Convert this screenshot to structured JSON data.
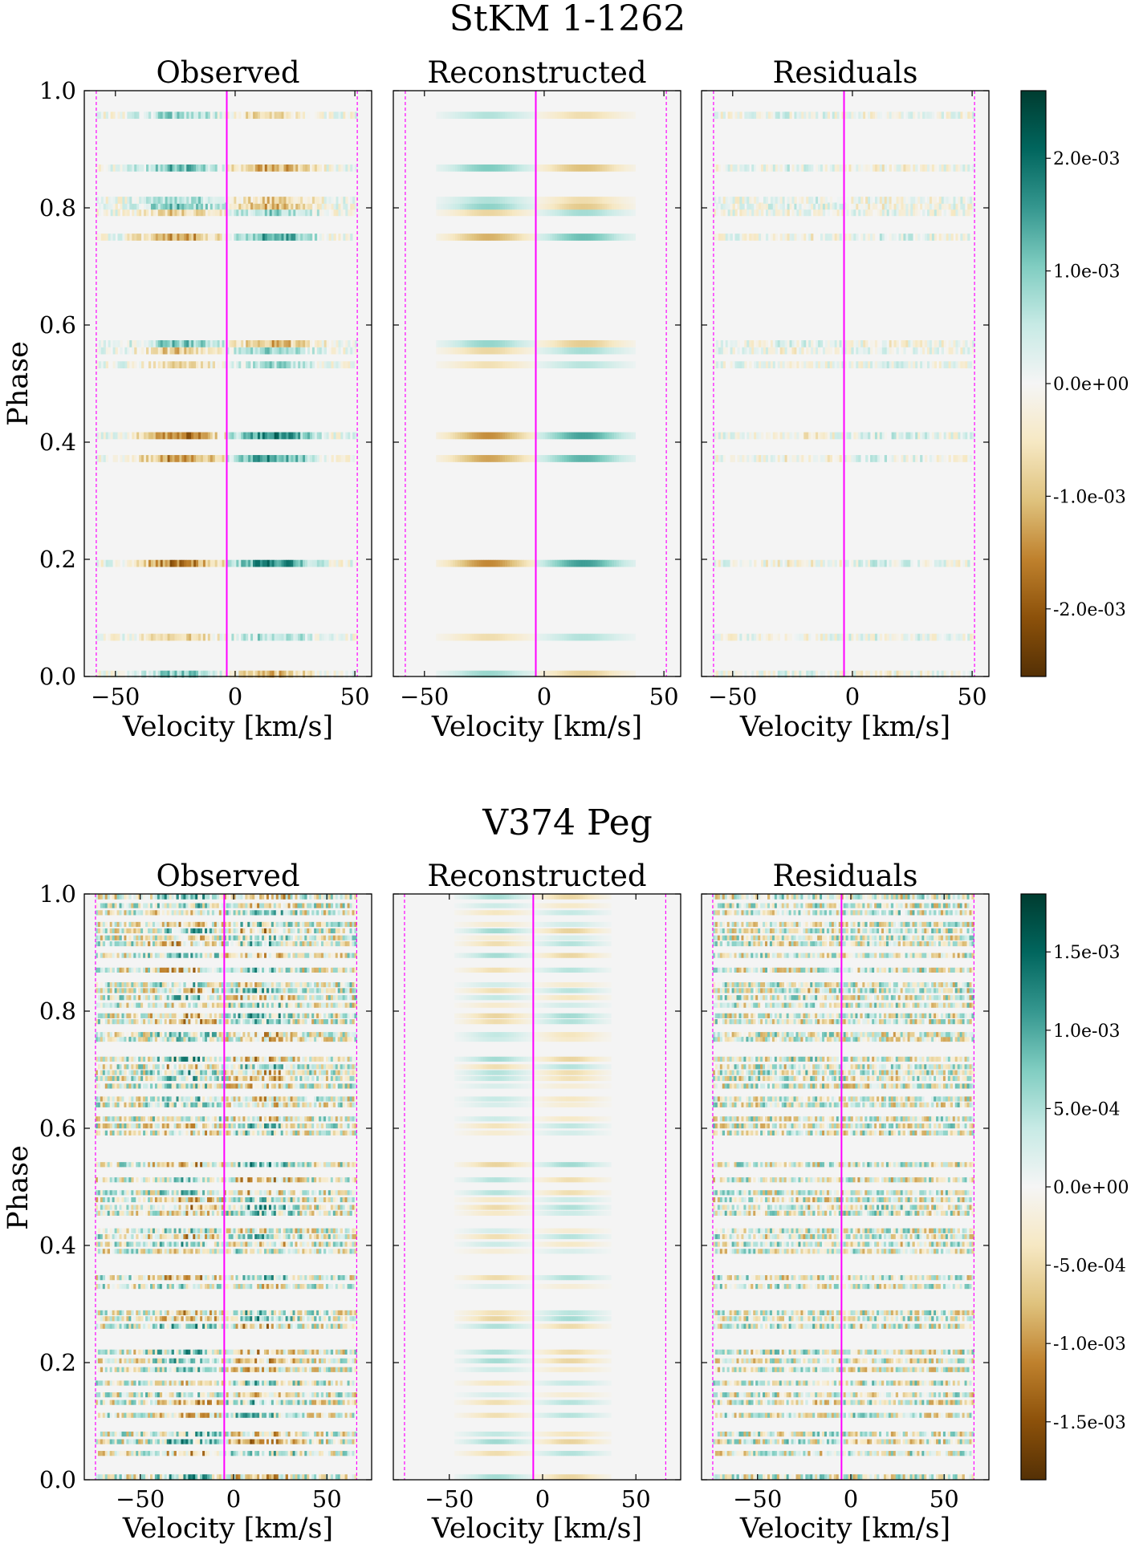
{
  "figure": {
    "colormap": [
      "#543005",
      "#8c510a",
      "#bf812d",
      "#dfc27d",
      "#f6e8c3",
      "#f5f5f5",
      "#c7eae5",
      "#80cdc1",
      "#35978f",
      "#01665e",
      "#003c30"
    ],
    "line_color": "#ff00ff",
    "background_color": "#f4f4f4"
  },
  "chart_data": [
    {
      "type": "heatmap",
      "title": "StKM 1-1262",
      "panels": [
        {
          "title": "Observed",
          "mode": "observed"
        },
        {
          "title": "Reconstructed",
          "mode": "reconstructed"
        },
        {
          "title": "Residuals",
          "mode": "residuals"
        }
      ],
      "xlabel": "Velocity [km/s]",
      "ylabel": "Phase",
      "xlim": [
        -63,
        57
      ],
      "ylim": [
        0.0,
        1.0
      ],
      "xticks": [
        -50,
        0,
        50
      ],
      "xtick_labels": [
        "−50",
        "0",
        "50"
      ],
      "yticks": [
        0.0,
        0.2,
        0.4,
        0.6,
        0.8,
        1.0
      ],
      "ytick_labels": [
        "0.0",
        "0.2",
        "0.4",
        "0.6",
        "0.8",
        "1.0"
      ],
      "center_velocity": -3.5,
      "edge_velocities": [
        -58,
        51
      ],
      "data_xrange": [
        -58,
        51
      ],
      "colorbar": {
        "range": [
          -0.0026,
          0.0026
        ],
        "ticks": [
          0.002,
          0.001,
          0.0,
          -0.001,
          -0.002
        ],
        "tick_labels": [
          "2.0e-03",
          "1.0e-03",
          "0.0e+00",
          "-1.0e-03",
          "-2.0e-03"
        ]
      },
      "phases": [
        0.004,
        0.067,
        0.193,
        0.372,
        0.411,
        0.532,
        0.556,
        0.568,
        0.75,
        0.792,
        0.803,
        0.813,
        0.868,
        0.958
      ],
      "stripe_height": 0.012,
      "signal_amplitude": 0.0019,
      "noise_amplitude": 0.00055,
      "seed": 11
    },
    {
      "type": "heatmap",
      "title": "V374 Peg",
      "panels": [
        {
          "title": "Observed",
          "mode": "observed"
        },
        {
          "title": "Reconstructed",
          "mode": "reconstructed"
        },
        {
          "title": "Residuals",
          "mode": "residuals"
        }
      ],
      "xlabel": "Velocity [km/s]",
      "ylabel": "Phase",
      "xlim": [
        -80,
        74
      ],
      "ylim": [
        0.0,
        1.0
      ],
      "xticks": [
        -50,
        0,
        50
      ],
      "xtick_labels": [
        "−50",
        "0",
        "50"
      ],
      "yticks": [
        0.0,
        0.2,
        0.4,
        0.6,
        0.8,
        1.0
      ],
      "ytick_labels": [
        "0.0",
        "0.2",
        "0.4",
        "0.6",
        "0.8",
        "1.0"
      ],
      "center_velocity": -5,
      "edge_velocities": [
        -74,
        66
      ],
      "data_xrange": [
        -74,
        66
      ],
      "colorbar": {
        "range": [
          -0.00187,
          0.00187
        ],
        "ticks": [
          0.0015,
          0.001,
          0.0005,
          0.0,
          -0.0005,
          -0.001,
          -0.0015
        ],
        "tick_labels": [
          "1.5e-03",
          "1.0e-03",
          "5.0e-04",
          "0.0e+00",
          "-5.0e-04",
          "-1.0e-03",
          "-1.5e-03"
        ]
      },
      "phases": [
        0.005,
        0.045,
        0.065,
        0.078,
        0.11,
        0.132,
        0.145,
        0.165,
        0.188,
        0.203,
        0.218,
        0.262,
        0.275,
        0.285,
        0.33,
        0.345,
        0.39,
        0.402,
        0.415,
        0.425,
        0.455,
        0.465,
        0.478,
        0.49,
        0.512,
        0.538,
        0.592,
        0.604,
        0.616,
        0.64,
        0.65,
        0.672,
        0.685,
        0.695,
        0.705,
        0.718,
        0.752,
        0.76,
        0.782,
        0.792,
        0.81,
        0.823,
        0.835,
        0.845,
        0.87,
        0.895,
        0.915,
        0.925,
        0.937,
        0.948,
        0.968,
        0.98,
        0.995
      ],
      "stripe_height": 0.0085,
      "signal_amplitude": 0.0007,
      "noise_amplitude": 0.00095,
      "seed": 29
    }
  ]
}
